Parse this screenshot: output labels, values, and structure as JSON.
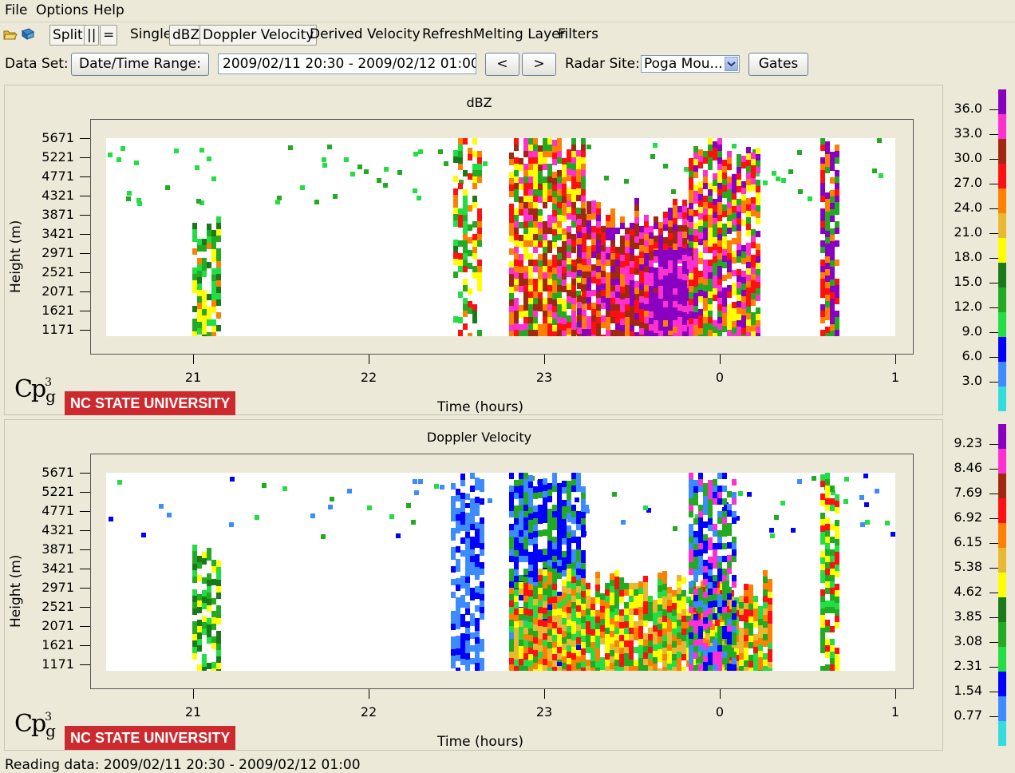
{
  "menu": [
    "File",
    "Options",
    "Help"
  ],
  "toolbar": {
    "split": "Split",
    "parallel": "||",
    "equal": "=",
    "single": "Single",
    "dbz": "dBZ",
    "doppler": "Doppler Velocity",
    "derived": "Derived Velocity",
    "refresh": "Refresh",
    "melting": "Melting Layer",
    "filters": "Filters"
  },
  "dataset": {
    "label": "Data Set:",
    "range_button": "Date/Time Range:",
    "range_value": "2009/02/11 20:30 - 2009/02/12 01:00",
    "prev": "<",
    "next": ">",
    "site_label": "Radar Site:",
    "site_value": "Poga Mou...",
    "gates": "Gates"
  },
  "status": "Reading data: 2009/02/11 20:30 - 2009/02/12 01:00",
  "logo": {
    "cp": "Cp",
    "sup": "3",
    "sub": "g",
    "university": "NC STATE UNIVERSITY"
  },
  "chart_data": [
    {
      "type": "heatmap",
      "title": "dBZ",
      "xlabel": "Time (hours)",
      "ylabel": "Height (m)",
      "x_ticks": [
        "21",
        "22",
        "23",
        "0",
        "1"
      ],
      "y_ticks": [
        "5671",
        "5221",
        "4771",
        "4321",
        "3871",
        "3421",
        "2971",
        "2521",
        "2071",
        "1621",
        "1171"
      ],
      "colorbar": [
        "36.0",
        "33.0",
        "30.0",
        "27.0",
        "24.0",
        "21.0",
        "18.0",
        "15.0",
        "12.0",
        "9.0",
        "6.0",
        "3.0"
      ],
      "colors": [
        "#8a00c0",
        "#ff30d0",
        "#a02810",
        "#ff1010",
        "#ff8000",
        "#e8b830",
        "#ffff00",
        "#1a7a1a",
        "#22aa22",
        "#22dd44",
        "#0000ff",
        "#3c8cff",
        "#33dddd"
      ]
    },
    {
      "type": "heatmap",
      "title": "Doppler Velocity",
      "xlabel": "Time (hours)",
      "ylabel": "Height (m)",
      "x_ticks": [
        "21",
        "22",
        "23",
        "0",
        "1"
      ],
      "y_ticks": [
        "5671",
        "5221",
        "4771",
        "4321",
        "3871",
        "3421",
        "2971",
        "2521",
        "2071",
        "1621",
        "1171"
      ],
      "colorbar": [
        "9.23",
        "8.46",
        "7.69",
        "6.92",
        "6.15",
        "5.38",
        "4.62",
        "3.85",
        "3.08",
        "2.31",
        "1.54",
        "0.77"
      ],
      "colors": [
        "#8a00c0",
        "#ff30d0",
        "#a02810",
        "#ff1010",
        "#ff8000",
        "#e8b830",
        "#ffff00",
        "#1a7a1a",
        "#22aa22",
        "#22dd44",
        "#0000ff",
        "#3c8cff",
        "#33dddd"
      ]
    }
  ]
}
